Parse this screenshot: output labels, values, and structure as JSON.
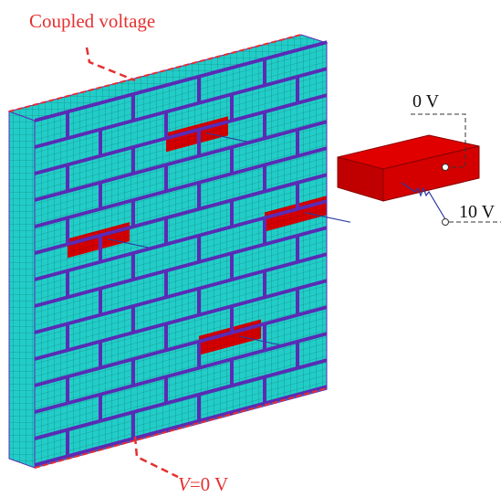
{
  "labels": {
    "top": "Coupled voltage",
    "brick_top": "0 V",
    "brick_bottom": "10 V",
    "bottom": {
      "symbol": "V",
      "text": "=0 V"
    }
  }
}
